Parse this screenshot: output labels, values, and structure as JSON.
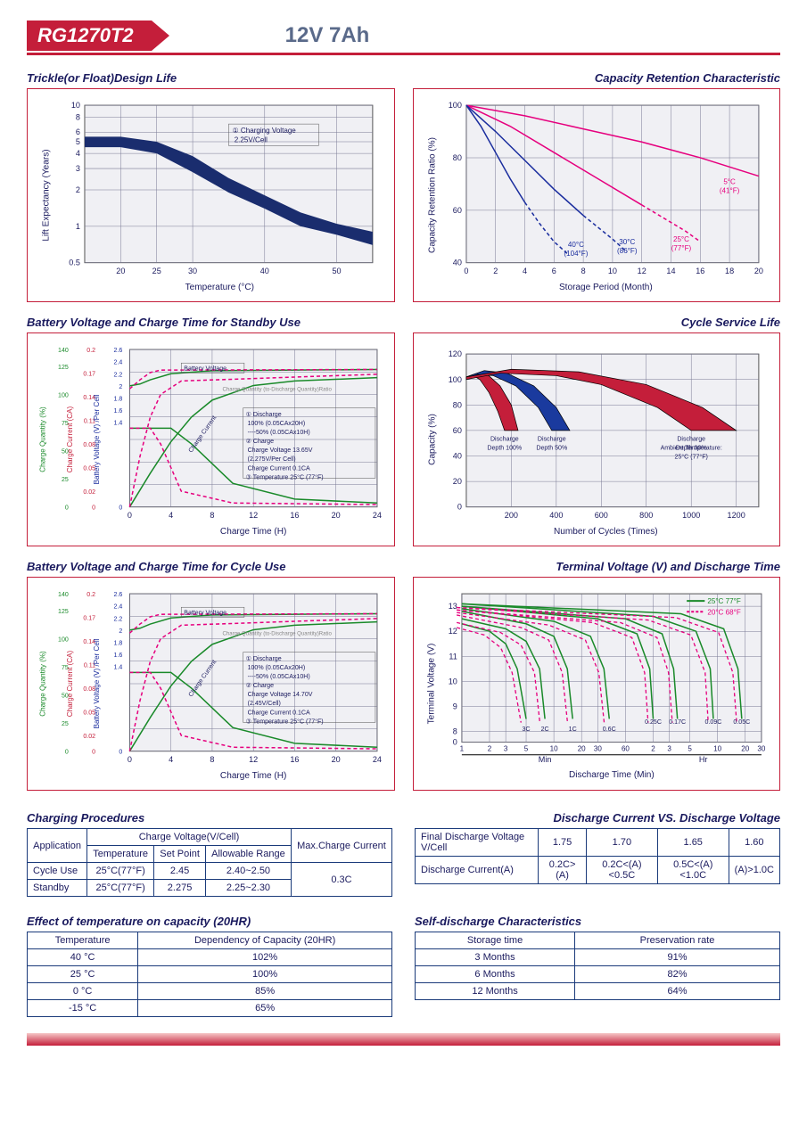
{
  "header": {
    "model": "RG1270T2",
    "spec": "12V  7Ah"
  },
  "charts": {
    "trickle": {
      "title": "Trickle(or Float)Design Life",
      "type": "area-band-logy",
      "xlabel": "Temperature (°C)",
      "ylabel": "Lift  Expectancy (Years)",
      "xlim": [
        15,
        55
      ],
      "xticks": [
        20,
        25,
        30,
        40,
        50
      ],
      "ylim": [
        0.5,
        10
      ],
      "yticks": [
        0.5,
        1,
        2,
        3,
        4,
        5,
        6,
        8,
        10
      ],
      "annotation": "① Charging Voltage\n  2.25V/Cell",
      "band_color": "#1a2d6e",
      "band_upper": [
        [
          15,
          5.5
        ],
        [
          20,
          5.5
        ],
        [
          25,
          5.0
        ],
        [
          30,
          3.8
        ],
        [
          35,
          2.5
        ],
        [
          40,
          1.8
        ],
        [
          45,
          1.3
        ],
        [
          50,
          1.05
        ],
        [
          55,
          0.9
        ]
      ],
      "band_lower": [
        [
          15,
          4.5
        ],
        [
          20,
          4.5
        ],
        [
          25,
          4.0
        ],
        [
          30,
          2.8
        ],
        [
          35,
          1.9
        ],
        [
          40,
          1.4
        ],
        [
          45,
          1.0
        ],
        [
          50,
          0.85
        ],
        [
          55,
          0.7
        ]
      ],
      "grid_color": "#7a7a95",
      "bg": "#f0f0f4"
    },
    "retention": {
      "title": "Capacity Retention Characteristic",
      "type": "line",
      "xlabel": "Storage Period (Month)",
      "ylabel": "Capacity Retention Ratio (%)",
      "xlim": [
        0,
        20
      ],
      "xticks": [
        0,
        2,
        4,
        6,
        8,
        10,
        12,
        14,
        16,
        18,
        20
      ],
      "ylim": [
        40,
        100
      ],
      "yticks": [
        40,
        60,
        80,
        100
      ],
      "bg": "#f0f0f4",
      "grid_color": "#7a7a95",
      "curves": [
        {
          "label": "5°C(41°F)",
          "color": "#e6007e",
          "solid_to": 20,
          "pts": [
            [
              0,
              100
            ],
            [
              4,
              96
            ],
            [
              8,
              91
            ],
            [
              12,
              86
            ],
            [
              16,
              80
            ],
            [
              20,
              73
            ]
          ]
        },
        {
          "label": "25°C(77°F)",
          "color": "#e6007e",
          "solid_to": 12,
          "pts": [
            [
              0,
              100
            ],
            [
              3,
              92
            ],
            [
              6,
              82
            ],
            [
              9,
              72
            ],
            [
              12,
              62
            ],
            [
              15,
              52
            ],
            [
              16,
              48
            ]
          ]
        },
        {
          "label": "30°C(86°F)",
          "color": "#1a2d9e",
          "solid_to": 8,
          "pts": [
            [
              0,
              100
            ],
            [
              2,
              90
            ],
            [
              4,
              79
            ],
            [
              6,
              68
            ],
            [
              8,
              58
            ],
            [
              10,
              49
            ],
            [
              11,
              44
            ]
          ]
        },
        {
          "label": "40°C(104°F)",
          "color": "#1a2d9e",
          "solid_to": 4.5,
          "pts": [
            [
              0,
              100
            ],
            [
              1,
              92
            ],
            [
              2,
              82
            ],
            [
              3,
              72
            ],
            [
              4,
              63
            ],
            [
              5,
              55
            ],
            [
              6,
              48
            ],
            [
              7,
              43
            ]
          ]
        }
      ],
      "curve_labels": [
        {
          "text": "5°C\n(41°F)",
          "x": 18,
          "y": 70,
          "color": "#e6007e"
        },
        {
          "text": "25°C\n(77°F)",
          "x": 14.7,
          "y": 48,
          "color": "#e6007e"
        },
        {
          "text": "30°C\n(86°F)",
          "x": 11,
          "y": 47,
          "color": "#1a2d9e"
        },
        {
          "text": "40°C\n(104°F)",
          "x": 7.5,
          "y": 46,
          "color": "#1a2d9e"
        }
      ]
    },
    "standby": {
      "title": "Battery Voltage and Charge Time for Standby Use",
      "type": "multi-axis",
      "xlabel": "Charge Time (H)",
      "xlim": [
        0,
        24
      ],
      "xticks": [
        0,
        4,
        8,
        12,
        16,
        20,
        24
      ],
      "axes": [
        {
          "label": "Charge Quantity (%)",
          "ticks": [
            0,
            25,
            50,
            75,
            100,
            125,
            140
          ],
          "color": "#1a8a2a"
        },
        {
          "label": "Charge Current (CA)",
          "ticks": [
            0,
            0.02,
            0.05,
            0.08,
            0.11,
            0.14,
            0.17,
            0.2
          ],
          "color": "#c41e3a"
        },
        {
          "label": "Battery Voltage (V) /Per Cell",
          "ticks": [
            0,
            1.4,
            1.6,
            1.8,
            2.0,
            2.2,
            2.4,
            2.6
          ],
          "color": "#1a2d9e"
        }
      ],
      "bg": "#f0f0f4",
      "grid_color": "#7a7a95",
      "annotation_box": "① Discharge\n    100% (0.05CAx20H)\n    ----50% (0.05CAx10H)\n② Charge\n    Charge Voltage 13.65V\n    (2.275V/Per Cell)\n    Charge Current 0.1CA\n③ Temperature 25°C (77°F)",
      "line_labels": [
        "Battery Voltage",
        "Charge Quantity (to-Discharge Quantity)Ratio",
        "Charge Current"
      ],
      "curves_green": [
        {
          "dash": false,
          "pts": [
            [
              0,
              2.0
            ],
            [
              1,
              2.03
            ],
            [
              2,
              2.1
            ],
            [
              4,
              2.2
            ],
            [
              8,
              2.25
            ],
            [
              24,
              2.27
            ]
          ],
          "yaxis": 2
        },
        {
          "dash": false,
          "pts": [
            [
              0,
              0
            ],
            [
              2,
              30
            ],
            [
              4,
              58
            ],
            [
              6,
              80
            ],
            [
              8,
              95
            ],
            [
              12,
              108
            ],
            [
              16,
              112
            ],
            [
              24,
              115
            ]
          ],
          "yaxis": 0
        },
        {
          "dash": false,
          "pts": [
            [
              0,
              0.1
            ],
            [
              4,
              0.1
            ],
            [
              6,
              0.08
            ],
            [
              10,
              0.03
            ],
            [
              16,
              0.01
            ],
            [
              24,
              0.005
            ]
          ],
          "yaxis": 1
        }
      ],
      "curves_pink": [
        {
          "dash": true,
          "pts": [
            [
              0,
              1.95
            ],
            [
              1,
              2.1
            ],
            [
              2,
              2.22
            ],
            [
              3,
              2.26
            ],
            [
              24,
              2.27
            ]
          ],
          "yaxis": 2
        },
        {
          "dash": true,
          "pts": [
            [
              0,
              0
            ],
            [
              1,
              45
            ],
            [
              2,
              80
            ],
            [
              3,
              100
            ],
            [
              5,
              112
            ],
            [
              24,
              118
            ]
          ],
          "yaxis": 0
        },
        {
          "dash": true,
          "pts": [
            [
              0,
              0.1
            ],
            [
              2,
              0.1
            ],
            [
              3,
              0.08
            ],
            [
              5,
              0.02
            ],
            [
              10,
              0.005
            ],
            [
              24,
              0.003
            ]
          ],
          "yaxis": 1
        }
      ]
    },
    "cyclelife": {
      "title": "Cycle Service Life",
      "type": "filled-bands",
      "xlabel": "Number of Cycles (Times)",
      "ylabel": "Capacity (%)",
      "xlim": [
        0,
        1300
      ],
      "xticks": [
        200,
        400,
        600,
        800,
        1000,
        1200
      ],
      "ylim": [
        0,
        120
      ],
      "yticks": [
        0,
        20,
        40,
        60,
        80,
        100,
        120
      ],
      "bg": "#f0f0f4",
      "grid_color": "#7a7a95",
      "note": "Ambient Temperature:\n25°C (77°F)",
      "bands": [
        {
          "label": "Discharge\nDepth 100%",
          "color": "#c41e3a",
          "upper": [
            [
              0,
              102
            ],
            [
              50,
              105
            ],
            [
              100,
              103
            ],
            [
              150,
              95
            ],
            [
              200,
              80
            ],
            [
              230,
              60
            ]
          ],
          "lower": [
            [
              0,
              100
            ],
            [
              30,
              103
            ],
            [
              60,
              100
            ],
            [
              100,
              90
            ],
            [
              140,
              75
            ],
            [
              170,
              60
            ]
          ]
        },
        {
          "label": "Discharge\nDepth 50%",
          "color": "#1a3a9e",
          "upper": [
            [
              0,
              102
            ],
            [
              80,
              107
            ],
            [
              180,
              105
            ],
            [
              300,
              95
            ],
            [
              400,
              78
            ],
            [
              460,
              60
            ]
          ],
          "lower": [
            [
              0,
              100
            ],
            [
              50,
              104
            ],
            [
              120,
              103
            ],
            [
              220,
              95
            ],
            [
              320,
              78
            ],
            [
              380,
              60
            ]
          ]
        },
        {
          "label": "Discharge\nDepth 30%",
          "color": "#c41e3a",
          "upper": [
            [
              0,
              102
            ],
            [
              200,
              108
            ],
            [
              500,
              106
            ],
            [
              800,
              96
            ],
            [
              1050,
              78
            ],
            [
              1200,
              60
            ]
          ],
          "lower": [
            [
              0,
              100
            ],
            [
              150,
              105
            ],
            [
              400,
              103
            ],
            [
              600,
              96
            ],
            [
              850,
              78
            ],
            [
              1000,
              60
            ]
          ]
        }
      ]
    },
    "cycleuse": {
      "title": "Battery Voltage and Charge Time for Cycle Use",
      "annotation_box": "① Discharge\n    100% (0.05CAx20H)\n    ----50% (0.05CAx10H)\n② Charge\n    Charge Voltage 14.70V\n    (2.45V/Cell)\n    Charge Current 0.1CA\n③ Temperature 25°C (77°F)"
    },
    "terminal": {
      "title": "Terminal Voltage (V) and Discharge Time",
      "type": "logx-line",
      "xlabel": "Discharge Time (Min)",
      "ylabel": "Terminal Voltage (V)",
      "legend": [
        {
          "label": "25°C 77°F",
          "color": "#1a8a2a",
          "dash": false
        },
        {
          "label": "20°C 68°F",
          "color": "#e6007e",
          "dash": true
        }
      ],
      "xsections": [
        "Min",
        "Hr"
      ],
      "xticks_min": [
        1,
        2,
        3,
        5,
        10,
        20,
        30,
        60
      ],
      "xticks_hr": [
        2,
        3,
        5,
        10,
        20,
        30
      ],
      "ylim": [
        0,
        13.5
      ],
      "yticks": [
        0,
        8,
        9,
        10,
        11,
        12,
        13
      ],
      "curve_labels": [
        "3C",
        "2C",
        "1C",
        "0.6C",
        "0.25C",
        "0.17C",
        "0.09C",
        "0.05C"
      ],
      "bg": "#f0f0f4",
      "grid_color": "#7a7a95",
      "curves": [
        {
          "c": "3C",
          "pts": [
            [
              1,
              12.3
            ],
            [
              2,
              12.0
            ],
            [
              3,
              11.5
            ],
            [
              4,
              10.5
            ],
            [
              5,
              8.5
            ]
          ]
        },
        {
          "c": "2C",
          "pts": [
            [
              1,
              12.5
            ],
            [
              3,
              12.1
            ],
            [
              5,
              11.6
            ],
            [
              7,
              10.5
            ],
            [
              8,
              8.5
            ]
          ]
        },
        {
          "c": "1C",
          "pts": [
            [
              1,
              12.8
            ],
            [
              5,
              12.3
            ],
            [
              10,
              11.8
            ],
            [
              14,
              10.5
            ],
            [
              16,
              8.5
            ]
          ]
        },
        {
          "c": "0.6C",
          "pts": [
            [
              1,
              12.9
            ],
            [
              10,
              12.4
            ],
            [
              25,
              11.8
            ],
            [
              35,
              10.5
            ],
            [
              40,
              8.5
            ]
          ]
        },
        {
          "c": "0.25C",
          "pts": [
            [
              1,
              13.0
            ],
            [
              30,
              12.5
            ],
            [
              80,
              11.9
            ],
            [
              110,
              10.5
            ],
            [
              120,
              8.5
            ]
          ]
        },
        {
          "c": "0.17C",
          "pts": [
            [
              1,
              13.0
            ],
            [
              60,
              12.5
            ],
            [
              150,
              11.9
            ],
            [
              200,
              10.5
            ],
            [
              220,
              8.5
            ]
          ]
        },
        {
          "c": "0.09C",
          "pts": [
            [
              1,
              13.1
            ],
            [
              120,
              12.6
            ],
            [
              350,
              12.0
            ],
            [
              500,
              10.5
            ],
            [
              540,
              8.5
            ]
          ]
        },
        {
          "c": "0.05C",
          "pts": [
            [
              1,
              13.1
            ],
            [
              240,
              12.7
            ],
            [
              700,
              12.1
            ],
            [
              1000,
              10.5
            ],
            [
              1100,
              8.5
            ]
          ]
        }
      ]
    }
  },
  "tables": {
    "charging_procedures": {
      "title": "Charging Procedures",
      "headers": [
        "Application",
        "Charge Voltage(V/Cell)",
        "Max.Charge Current"
      ],
      "subheaders": [
        "Temperature",
        "Set Point",
        "Allowable Range"
      ],
      "rows": [
        [
          "Cycle Use",
          "25°C(77°F)",
          "2.45",
          "2.40~2.50"
        ],
        [
          "Standby",
          "25°C(77°F)",
          "2.275",
          "2.25~2.30"
        ]
      ],
      "max_current": "0.3C"
    },
    "discharge_current": {
      "title": "Discharge Current VS. Discharge Voltage",
      "row1": [
        "Final Discharge Voltage V/Cell",
        "1.75",
        "1.70",
        "1.65",
        "1.60"
      ],
      "row2": [
        "Discharge Current(A)",
        "0.2C>(A)",
        "0.2C<(A)<0.5C",
        "0.5C<(A)<1.0C",
        "(A)>1.0C"
      ]
    },
    "temp_effect": {
      "title": "Effect of temperature on capacity (20HR)",
      "headers": [
        "Temperature",
        "Dependency of Capacity (20HR)"
      ],
      "rows": [
        [
          "40 °C",
          "102%"
        ],
        [
          "25 °C",
          "100%"
        ],
        [
          "0 °C",
          "85%"
        ],
        [
          "-15 °C",
          "65%"
        ]
      ]
    },
    "self_discharge": {
      "title": "Self-discharge Characteristics",
      "headers": [
        "Storage time",
        "Preservation rate"
      ],
      "rows": [
        [
          "3 Months",
          "91%"
        ],
        [
          "6 Months",
          "82%"
        ],
        [
          "12 Months",
          "64%"
        ]
      ]
    }
  }
}
